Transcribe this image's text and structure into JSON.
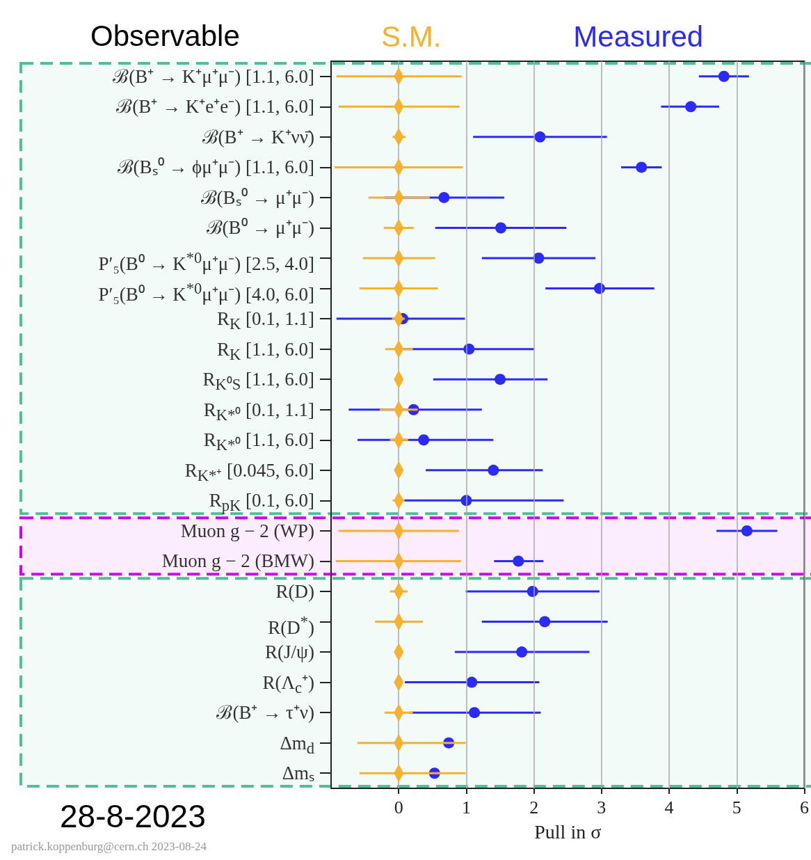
{
  "chart_data": {
    "type": "scatter",
    "orientation": "horizontal",
    "ylabel": "Observable",
    "xlabel": "Pull in σ",
    "categories": [
      "ℬ(B⁺ → K⁺μ⁺μ⁻) [1.1, 6.0]",
      "ℬ(B⁺ → K⁺e⁺e⁻) [1.1, 6.0]",
      "ℬ(B⁺ → K⁺νν̄)",
      "ℬ(Bₛ⁰ → ϕμ⁺μ⁻) [1.1, 6.0]",
      "ℬ(Bₛ⁰ → μ⁺μ⁻)",
      "ℬ(B⁰ → μ⁺μ⁻)",
      "P′₅(B⁰ → K$^{*0}$μ⁺μ⁻) [2.5, 4.0]",
      "P′₅(B⁰ → K$^{*0}$μ⁺μ⁻) [4.0, 6.0]",
      "R$_{K}$ [0.1, 1.1]",
      "R$_{K}$ [1.1, 6.0]",
      "R$_{K⁰S}$ [1.1, 6.0]",
      "R$_{K*⁰}$ [0.1, 1.1]",
      "R$_{K*⁰}$ [1.1, 6.0]",
      "R$_{K*⁺}$ [0.045, 6.0]",
      "R$_{pK}$ [0.1, 6.0]",
      "Muon g − 2 (WP)",
      "Muon g − 2 (BMW)",
      "R(D)",
      "R(D$^{*}$)",
      "R(J/ψ)",
      "R(Λ$_{c}$⁺)",
      "ℬ(B⁺ → τ⁺ν)",
      "Δm$_{d}$",
      "Δmₛ"
    ],
    "series": [
      {
        "name": "S.M.",
        "color": "#f7b130",
        "marker": "diamond",
        "values": [
          0,
          0,
          0,
          0,
          0,
          0,
          0,
          0,
          0,
          0,
          0,
          0,
          0,
          0,
          0,
          0,
          0,
          0,
          0,
          0,
          0,
          0,
          0,
          0
        ],
        "errors": [
          [
            -0.92,
            0.93
          ],
          [
            -0.89,
            0.9
          ],
          [
            -0.09,
            0.1
          ],
          [
            -0.95,
            0.95
          ],
          [
            -0.45,
            0.46
          ],
          [
            -0.22,
            0.22
          ],
          [
            -0.53,
            0.54
          ],
          [
            -0.58,
            0.58
          ],
          [
            -0.1,
            0.09
          ],
          [
            -0.2,
            0.21
          ],
          null,
          [
            -0.28,
            0.28
          ],
          [
            -0.13,
            0.14
          ],
          null,
          [
            -0.09,
            0.09
          ],
          [
            -0.89,
            0.89
          ],
          [
            -0.93,
            0.92
          ],
          [
            -0.13,
            0.13
          ],
          [
            -0.35,
            0.36
          ],
          null,
          null,
          [
            -0.21,
            0.21
          ],
          [
            -0.61,
            0.99
          ],
          [
            -0.58,
            0.99
          ]
        ]
      },
      {
        "name": "Measured",
        "color": "#2b2bf5",
        "marker": "circle",
        "values": [
          4.81,
          4.32,
          2.09,
          3.59,
          0.67,
          1.51,
          2.07,
          2.97,
          0.06,
          1.04,
          1.5,
          0.22,
          0.37,
          1.4,
          1.0,
          5.15,
          1.77,
          1.98,
          2.16,
          1.82,
          1.08,
          1.12,
          0.74,
          0.53
        ],
        "errors": [
          [
            4.44,
            5.18
          ],
          [
            3.88,
            4.74
          ],
          [
            1.1,
            3.08
          ],
          [
            3.29,
            3.89
          ],
          [
            -0.21,
            1.56
          ],
          [
            0.54,
            2.48
          ],
          [
            1.23,
            2.91
          ],
          [
            2.17,
            3.78
          ],
          [
            -0.92,
            0.98
          ],
          [
            0.07,
            2.0
          ],
          [
            0.51,
            2.2
          ],
          [
            -0.74,
            1.23
          ],
          [
            -0.61,
            1.4
          ],
          [
            0.4,
            2.13
          ],
          [
            0.04,
            2.44
          ],
          [
            4.7,
            5.6
          ],
          [
            1.41,
            2.14
          ],
          [
            0.99,
            2.97
          ],
          [
            1.23,
            3.09
          ],
          [
            0.83,
            2.82
          ],
          [
            0.09,
            2.08
          ],
          [
            0.16,
            2.1
          ],
          null,
          null
        ]
      }
    ],
    "xlim": [
      -1,
      6
    ],
    "xticks": [
      0,
      1,
      2,
      3,
      4,
      5,
      6
    ],
    "grid": "x",
    "legend": "top",
    "bands": [
      {
        "axis": "y",
        "from": "ℬ(B⁺ → K⁺μ⁺μ⁻) [1.1, 6.0]",
        "to": "R$_{pK}$ [0.1, 6.0]",
        "color": "#4fc095"
      },
      {
        "axis": "y",
        "from": "Muon g − 2 (WP)",
        "to": "Muon g − 2 (BMW)",
        "color": "#d400f5"
      },
      {
        "axis": "y",
        "from": "R(D)",
        "to": "Δmₛ",
        "color": "#4fc095"
      }
    ],
    "annotations": [
      "28-8-2023",
      "patrick.koppenburg@cern.ch 2023-08-24"
    ]
  }
}
